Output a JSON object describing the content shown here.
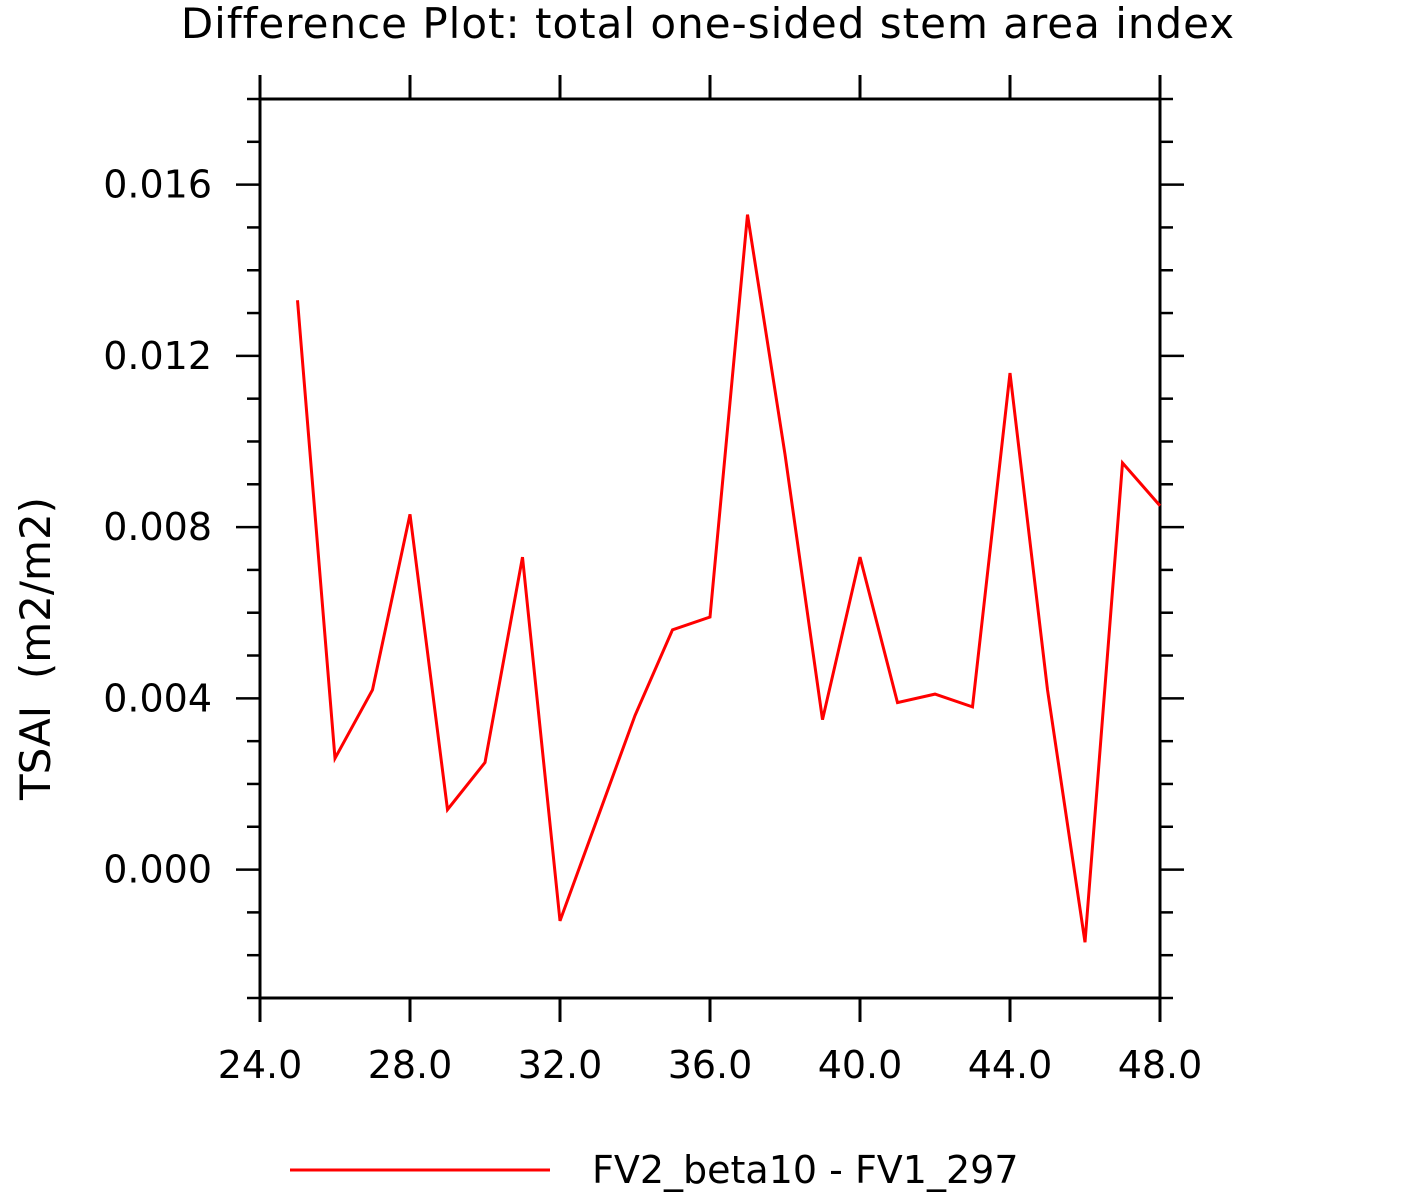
{
  "chart_data": {
    "type": "line",
    "title": "Difference Plot: total one-sided stem area index",
    "xlabel": "",
    "ylabel": "TSAI  (m2/m2)",
    "xlim": [
      24,
      48
    ],
    "ylim": [
      -0.003,
      0.018
    ],
    "x_ticks": [
      "24.0",
      "28.0",
      "32.0",
      "36.0",
      "40.0",
      "44.0",
      "48.0"
    ],
    "y_ticks": [
      "0.000",
      "0.004",
      "0.008",
      "0.012",
      "0.016"
    ],
    "grid": false,
    "legend_position": "bottom",
    "colors": {
      "line": "#ff0000",
      "axis": "#000000"
    },
    "series": [
      {
        "name": "FV2_beta10 - FV1_297",
        "x": [
          25,
          26,
          27,
          28,
          29,
          30,
          31,
          32,
          33,
          34,
          35,
          36,
          37,
          38,
          39,
          40,
          41,
          42,
          43,
          44,
          45,
          46,
          47,
          48
        ],
        "values": [
          0.0133,
          0.0026,
          0.0042,
          0.0083,
          0.0014,
          0.0025,
          0.0073,
          -0.0012,
          0.0012,
          0.0036,
          0.0056,
          0.0059,
          0.0153,
          0.0097,
          0.0035,
          0.0073,
          0.0039,
          0.0041,
          0.0038,
          0.0116,
          0.0042,
          -0.0017,
          0.0095,
          0.0085
        ]
      }
    ]
  }
}
